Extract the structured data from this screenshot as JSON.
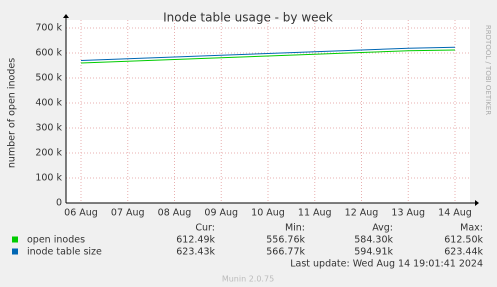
{
  "chart_data": {
    "type": "line",
    "title": "Inode table usage - by week",
    "y_label": "number of open inodes",
    "categories": [
      "06 Aug",
      "07 Aug",
      "08 Aug",
      "09 Aug",
      "10 Aug",
      "11 Aug",
      "12 Aug",
      "13 Aug",
      "14 Aug"
    ],
    "series": [
      {
        "name": "open inodes",
        "color": "#00cc00",
        "values": [
          560000,
          567000,
          574000,
          581000,
          588000,
          595000,
          602000,
          609000,
          612000
        ]
      },
      {
        "name": "inode table size",
        "color": "#0066b3",
        "values": [
          570000,
          577000,
          584000,
          591000,
          598000,
          605000,
          612000,
          619000,
          623000
        ]
      }
    ],
    "ylim": [
      0,
      700000
    ],
    "yticks": [
      0,
      {
        "value": 100000,
        "label": "100 k"
      },
      {
        "value": 200000,
        "label": "200 k"
      },
      {
        "value": 300000,
        "label": "300 k"
      },
      {
        "value": 400000,
        "label": "400 k"
      },
      {
        "value": 500000,
        "label": "500 k"
      },
      {
        "value": 600000,
        "label": "600 k"
      },
      {
        "value": 700000,
        "label": "700 k"
      }
    ],
    "grid": true,
    "stats": {
      "headers": [
        "Cur:",
        "Min:",
        "Avg:",
        "Max:"
      ],
      "rows": [
        [
          "612.49k",
          "556.76k",
          "584.30k",
          "612.50k"
        ],
        [
          "623.43k",
          "566.77k",
          "594.91k",
          "623.44k"
        ]
      ]
    },
    "last_update": "Last update: Wed Aug 14 19:01:41 2024",
    "footer": "Munin 2.0.75",
    "side_label": "RRDTOOL / TOBI OETIKER"
  }
}
